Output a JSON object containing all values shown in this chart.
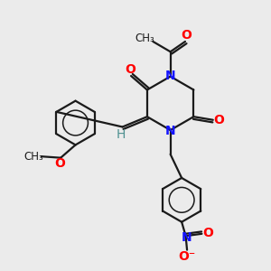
{
  "bg_color": "#ebebeb",
  "bond_color": "#1a1a1a",
  "N_color": "#1414ff",
  "O_color": "#ff0000",
  "H_color": "#4e9090",
  "line_width": 1.6,
  "font_size": 10,
  "fig_w": 3.0,
  "fig_h": 3.0,
  "dpi": 100,
  "xlim": [
    0,
    10
  ],
  "ylim": [
    0,
    10
  ]
}
